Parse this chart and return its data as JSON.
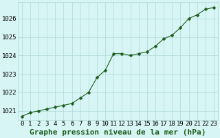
{
  "x": [
    0,
    1,
    2,
    3,
    4,
    5,
    6,
    7,
    8,
    9,
    10,
    11,
    12,
    13,
    14,
    15,
    16,
    17,
    18,
    19,
    20,
    21,
    22,
    23
  ],
  "y": [
    1020.7,
    1020.9,
    1021.0,
    1021.1,
    1021.2,
    1021.3,
    1021.4,
    1021.7,
    1022.0,
    1022.8,
    1023.2,
    1024.1,
    1024.1,
    1024.0,
    1024.1,
    1024.2,
    1024.5,
    1024.9,
    1025.1,
    1025.5,
    1026.0,
    1026.2,
    1026.5,
    1026.6
  ],
  "line_color": "#1a5c1a",
  "marker": "D",
  "marker_size": 2.5,
  "bg_color": "#d8f5f5",
  "grid_color": "#b0d8d8",
  "title": "Graphe pression niveau de la mer (hPa)",
  "ylim": [
    1020.5,
    1026.9
  ],
  "xlim": [
    -0.5,
    23.5
  ],
  "yticks": [
    1021,
    1022,
    1023,
    1024,
    1025,
    1026
  ],
  "xticks": [
    0,
    1,
    2,
    3,
    4,
    5,
    6,
    7,
    8,
    9,
    10,
    11,
    12,
    13,
    14,
    15,
    16,
    17,
    18,
    19,
    20,
    21,
    22,
    23
  ],
  "xtick_labels": [
    "0",
    "1",
    "2",
    "3",
    "4",
    "5",
    "6",
    "7",
    "8",
    "9",
    "10",
    "11",
    "12",
    "13",
    "14",
    "15",
    "16",
    "17",
    "18",
    "19",
    "20",
    "21",
    "22",
    "23"
  ],
  "title_fontsize": 8,
  "tick_fontsize": 6.5,
  "title_color": "#1a5c1a",
  "outer_bg": "#d8f5f5"
}
